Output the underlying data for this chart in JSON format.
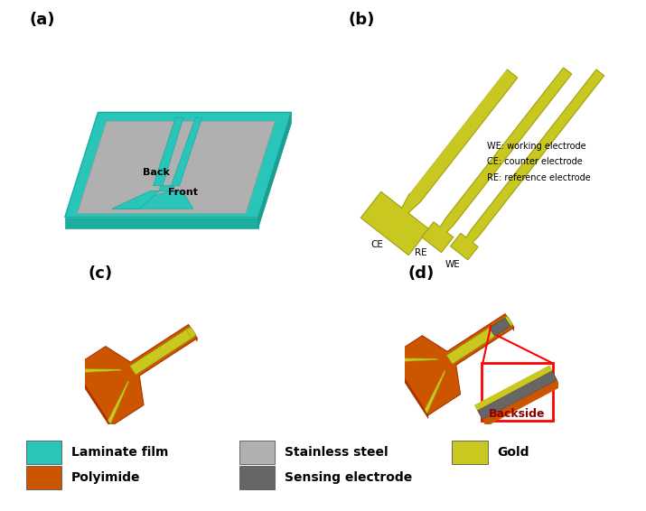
{
  "panel_labels": [
    "(a)",
    "(b)",
    "(c)",
    "(d)"
  ],
  "panel_label_fontsize": 13,
  "panel_label_fontweight": "bold",
  "bg_color": "#ffffff",
  "colors": {
    "laminate": "#29c5b8",
    "stainless": "#b0b0b0",
    "gold": "#c8c820",
    "polyimide": "#cc5500",
    "sensing": "#666666",
    "teal": "#29c5b8",
    "teal_dark": "#1aada0",
    "teal_side": "#1a9e92"
  },
  "legend_fontsize": 10,
  "legend_fontweight": "bold",
  "panel_b_text": "WE: working electrode\nCE: counter electrode\nRE: reference electrode",
  "back_label": "Back",
  "front_label": "Front",
  "backside_label": "Backside"
}
